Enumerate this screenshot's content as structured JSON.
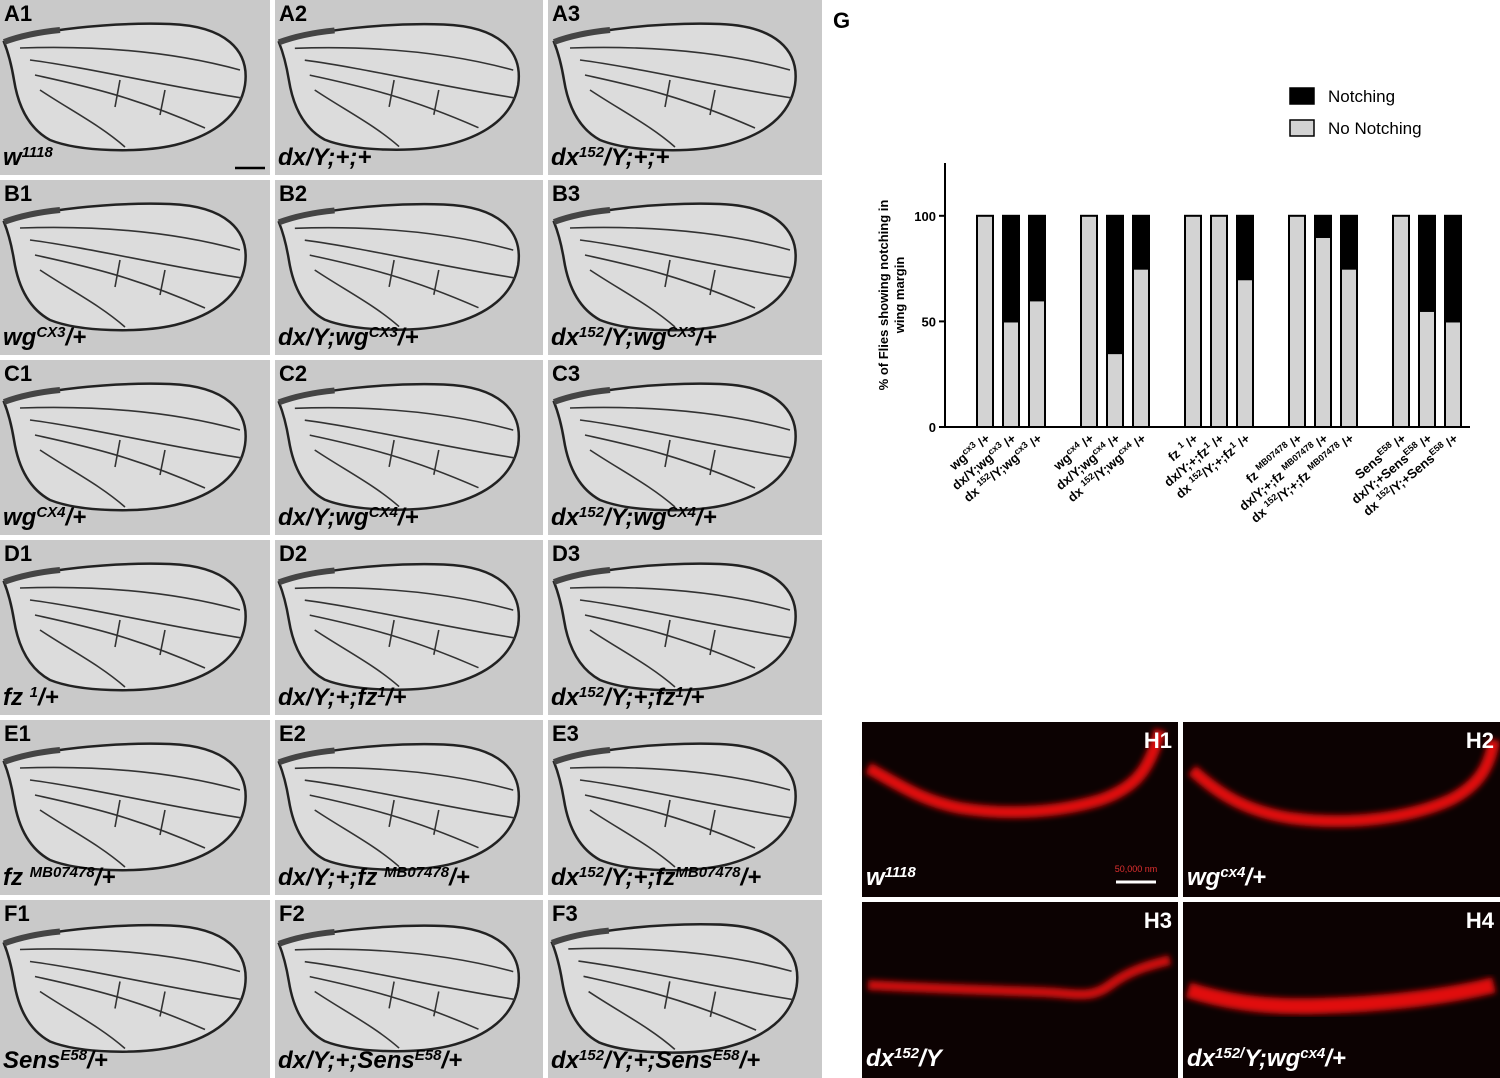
{
  "wing_panels": [
    {
      "label": "A1",
      "genotype": [
        "w",
        "1118"
      ]
    },
    {
      "label": "A2",
      "genotype": [
        "dx/Y;+;+"
      ]
    },
    {
      "label": "A3",
      "genotype": [
        "dx",
        "152",
        "/Y;+;+"
      ]
    },
    {
      "label": "B1",
      "genotype": [
        "wg",
        "CX3",
        "/+"
      ]
    },
    {
      "label": "B2",
      "genotype": [
        "dx/Y;wg",
        "CX3",
        "/+"
      ]
    },
    {
      "label": "B3",
      "genotype": [
        "dx",
        "152",
        "/Y;wg",
        "CX3",
        "/+"
      ]
    },
    {
      "label": "C1",
      "genotype": [
        "wg",
        "CX4",
        "/+"
      ]
    },
    {
      "label": "C2",
      "genotype": [
        "dx/Y;wg",
        "CX4",
        "/+"
      ]
    },
    {
      "label": "C3",
      "genotype": [
        "dx",
        "152",
        "/Y;wg",
        "CX4",
        "/+"
      ]
    },
    {
      "label": "D1",
      "genotype": [
        "fz ",
        "1",
        "/+"
      ]
    },
    {
      "label": "D2",
      "genotype": [
        "dx/Y;+;fz",
        "1",
        "/+"
      ]
    },
    {
      "label": "D3",
      "genotype": [
        "dx",
        "152",
        "/Y;+;fz",
        "1",
        "/+"
      ]
    },
    {
      "label": "E1",
      "genotype": [
        "fz ",
        "MB07478",
        "/+"
      ]
    },
    {
      "label": "E2",
      "genotype": [
        "dx/Y;+;fz ",
        "MB07478",
        "/+"
      ]
    },
    {
      "label": "E3",
      "genotype": [
        "dx",
        "152",
        "/Y;+;fz",
        "MB07478",
        "/+"
      ]
    },
    {
      "label": "F1",
      "genotype": [
        "Sens",
        "E58",
        "/+"
      ]
    },
    {
      "label": "F2",
      "genotype": [
        "dx/Y;+;Sens",
        "E58",
        "/+"
      ]
    },
    {
      "label": "F3",
      "genotype": [
        "dx",
        "152",
        "/Y;+;Sens",
        "E58",
        "/+"
      ]
    }
  ],
  "chart_label": "G",
  "chart_data": {
    "type": "bar",
    "stacked": true,
    "y_label": [
      "% of Flies showing notching in",
      "wing margin"
    ],
    "categories": [
      [
        "wg",
        "cx3",
        " /+"
      ],
      [
        "dx/Y;wg",
        "cx3",
        " /+"
      ],
      [
        "dx ",
        "152",
        "/Y;wg",
        "cx3",
        " /+"
      ],
      [
        "wg",
        "cx4",
        " /+"
      ],
      [
        "dx/Y;wg",
        "cx4",
        " /+"
      ],
      [
        "dx ",
        "152",
        "/Y;wg",
        "cx4",
        " /+"
      ],
      [
        "fz ",
        "1",
        " /+"
      ],
      [
        "dx/Y;+;fz",
        "1",
        " /+"
      ],
      [
        "dx ",
        "152",
        "/Y;+;fz",
        "1",
        " /+"
      ],
      [
        "fz ",
        "MB07478",
        " /+"
      ],
      [
        "dx/Y;+;fz ",
        "MB07478",
        " /+"
      ],
      [
        "dx ",
        "152",
        "/Y;+;fz ",
        "MB07478",
        " /+"
      ],
      [
        "Sens",
        "E58",
        " /+"
      ],
      [
        "dx/Y;+Sens",
        "E58",
        " /+"
      ],
      [
        "dx ",
        "152",
        "/Y;+Sens",
        "E58",
        " /+"
      ]
    ],
    "series": [
      {
        "name": "Notching",
        "color": "#000000",
        "values": [
          0,
          50,
          40,
          0,
          65,
          25,
          0,
          0,
          30,
          0,
          10,
          25,
          0,
          45,
          50
        ]
      },
      {
        "name": "No Notching",
        "color": "#d3d3d3",
        "values": [
          100,
          50,
          60,
          100,
          35,
          75,
          100,
          100,
          70,
          100,
          90,
          75,
          100,
          55,
          50
        ]
      }
    ],
    "ylim": [
      0,
      125
    ],
    "yticks": [
      0,
      50,
      100
    ],
    "legend": "top-right"
  },
  "stain_panels": [
    {
      "label": "H1",
      "genotype": [
        "w",
        "1118"
      ]
    },
    {
      "label": "H2",
      "genotype": [
        "wg",
        "cx4",
        "/+"
      ]
    },
    {
      "label": "H3",
      "genotype": [
        "dx",
        "152",
        "/Y"
      ]
    },
    {
      "label": "H4",
      "genotype": [
        "dx",
        "152/",
        "Y;wg",
        "cx4",
        "/+"
      ]
    }
  ],
  "scale_bar_label": "50,000 nm"
}
